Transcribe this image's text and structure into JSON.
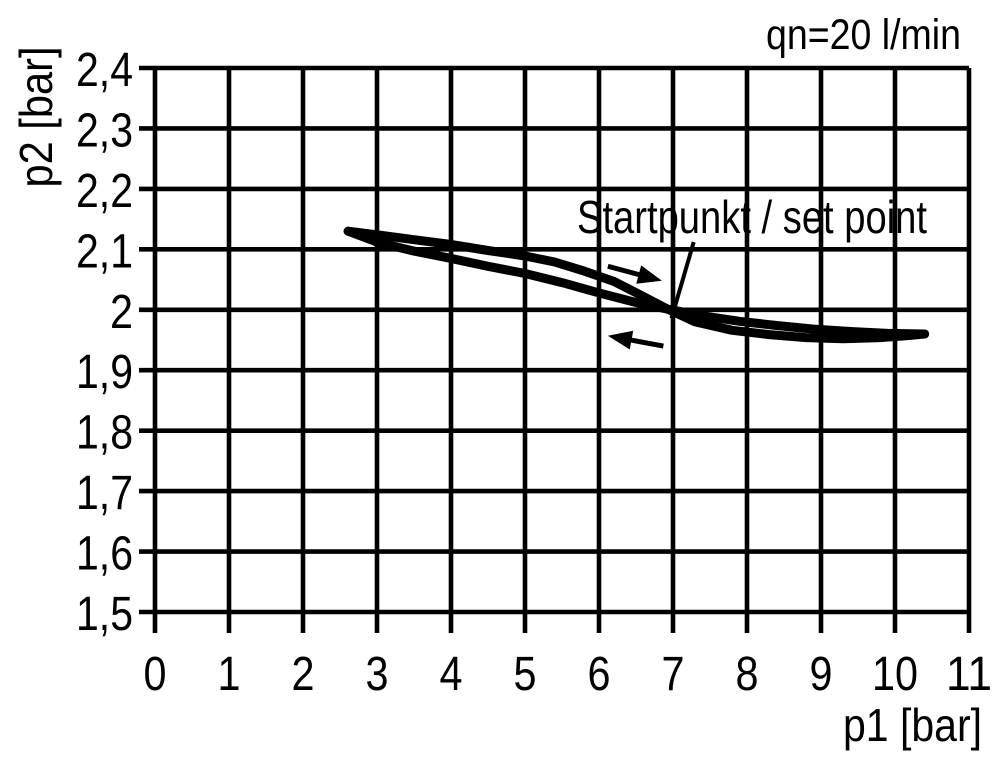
{
  "chart_data": {
    "type": "line",
    "title": "",
    "flow_label": "qn=20 l/min",
    "xlabel": "p1 [bar]",
    "ylabel": "p2 [bar]",
    "xlim": [
      0,
      11
    ],
    "ylim": [
      1.5,
      2.4
    ],
    "grid": true,
    "legend_position": "none",
    "x_ticks": [
      {
        "value": 0,
        "label": "0"
      },
      {
        "value": 1,
        "label": "1"
      },
      {
        "value": 2,
        "label": "2"
      },
      {
        "value": 3,
        "label": "3"
      },
      {
        "value": 4,
        "label": "4"
      },
      {
        "value": 5,
        "label": "5"
      },
      {
        "value": 6,
        "label": "6"
      },
      {
        "value": 7,
        "label": "7"
      },
      {
        "value": 8,
        "label": "8"
      },
      {
        "value": 9,
        "label": "9"
      },
      {
        "value": 10,
        "label": "10"
      },
      {
        "value": 11,
        "label": "11"
      }
    ],
    "y_ticks": [
      {
        "value": 2.4,
        "label": "2,4"
      },
      {
        "value": 2.3,
        "label": "2,3"
      },
      {
        "value": 2.2,
        "label": "2,2"
      },
      {
        "value": 2.1,
        "label": "2,1"
      },
      {
        "value": 2.0,
        "label": "2"
      },
      {
        "value": 1.9,
        "label": "1,9"
      },
      {
        "value": 1.8,
        "label": "1,8"
      },
      {
        "value": 1.7,
        "label": "1,7"
      },
      {
        "value": 1.6,
        "label": "1,6"
      },
      {
        "value": 1.5,
        "label": "1,5"
      }
    ],
    "annotation": {
      "text": "Startpunkt / set point",
      "target": [
        6.95,
        2.0
      ],
      "leader_from": [
        7.28,
        2.112
      ],
      "leader_to": [
        6.98,
        1.986
      ]
    },
    "series": [
      {
        "name": "increasing-p1-branch",
        "points": [
          [
            2.61,
            2.13
          ],
          [
            3.0,
            2.124
          ],
          [
            3.5,
            2.116
          ],
          [
            4.0,
            2.108
          ],
          [
            4.5,
            2.098
          ],
          [
            5.0,
            2.089
          ],
          [
            5.4,
            2.079
          ],
          [
            5.8,
            2.064
          ],
          [
            6.2,
            2.047
          ],
          [
            6.6,
            2.022
          ],
          [
            6.93,
            2.001
          ],
          [
            7.3,
            1.98
          ],
          [
            7.8,
            1.966
          ],
          [
            8.3,
            1.959
          ],
          [
            8.8,
            1.954
          ],
          [
            9.3,
            1.952
          ],
          [
            9.8,
            1.954
          ],
          [
            10.15,
            1.957
          ],
          [
            10.4,
            1.96
          ]
        ]
      },
      {
        "name": "decreasing-p1-branch",
        "points": [
          [
            2.61,
            2.13
          ],
          [
            3.0,
            2.112
          ],
          [
            3.5,
            2.097
          ],
          [
            4.0,
            2.085
          ],
          [
            4.5,
            2.072
          ],
          [
            5.0,
            2.06
          ],
          [
            5.5,
            2.045
          ],
          [
            6.0,
            2.028
          ],
          [
            6.5,
            2.012
          ],
          [
            6.93,
            2.001
          ],
          [
            7.4,
            1.99
          ],
          [
            7.9,
            1.981
          ],
          [
            8.4,
            1.974
          ],
          [
            8.9,
            1.968
          ],
          [
            9.4,
            1.964
          ],
          [
            9.9,
            1.961
          ],
          [
            10.4,
            1.96
          ]
        ]
      }
    ],
    "arrows": [
      {
        "name": "direction-arrow-right",
        "from": [
          6.12,
          2.072
        ],
        "to": [
          6.85,
          2.048
        ]
      },
      {
        "name": "direction-arrow-left",
        "from": [
          6.87,
          1.94
        ],
        "to": [
          6.12,
          1.957
        ]
      }
    ],
    "colors": {
      "ink": "#000000",
      "background": "#ffffff"
    }
  }
}
